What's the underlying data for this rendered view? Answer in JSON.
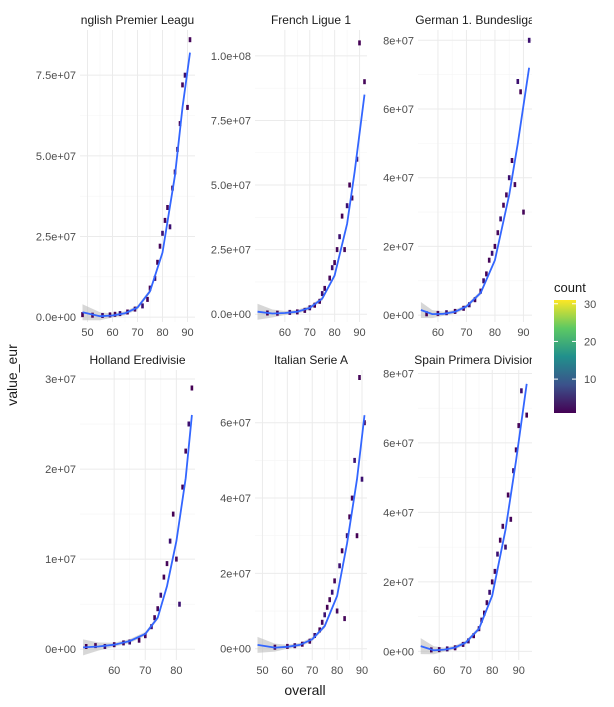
{
  "chart_data": {
    "type": "heatmap",
    "title": "",
    "xlabel": "overall",
    "ylabel": "value_eur",
    "legend": {
      "title": "count",
      "position": "right",
      "breaks": [
        10,
        20,
        30
      ],
      "range": [
        1,
        31
      ],
      "colors": [
        "#440154",
        "#3b528b",
        "#21908c",
        "#5dc863",
        "#fde725"
      ]
    },
    "smooth_color": "#3366ff",
    "ribbon_color": "#bdbdbd",
    "facets": [
      {
        "name": "English Premier League",
        "label_display": "nglish Premier Leagu",
        "xlim": [
          47,
          93
        ],
        "ylim": [
          -1500000,
          89000000
        ],
        "xticks": [
          50,
          60,
          70,
          80,
          90
        ],
        "yticks": [
          0,
          25000000,
          50000000,
          75000000
        ],
        "ytick_labels": [
          "0.0e+00",
          "2.5e+07",
          "5.0e+07",
          "7.5e+07"
        ],
        "smooth": [
          [
            48,
            1500000
          ],
          [
            55,
            300000
          ],
          [
            60,
            500000
          ],
          [
            65,
            1200000
          ],
          [
            70,
            3000000
          ],
          [
            75,
            8000000
          ],
          [
            80,
            20000000
          ],
          [
            85,
            44000000
          ],
          [
            88,
            65000000
          ],
          [
            91,
            82000000
          ]
        ],
        "cells": [
          [
            48,
            800000
          ],
          [
            52,
            600000
          ],
          [
            56,
            500000
          ],
          [
            59,
            700000
          ],
          [
            61,
            900000
          ],
          [
            63,
            1100000
          ],
          [
            66,
            1600000
          ],
          [
            69,
            2500000
          ],
          [
            72,
            3500000
          ],
          [
            74,
            5500000
          ],
          [
            75,
            9000000
          ],
          [
            77,
            12000000
          ],
          [
            78,
            17000000
          ],
          [
            79,
            22000000
          ],
          [
            80,
            26000000
          ],
          [
            81,
            30000000
          ],
          [
            82,
            34000000
          ],
          [
            83,
            28000000
          ],
          [
            84,
            40000000
          ],
          [
            85,
            45000000
          ],
          [
            86,
            52000000
          ],
          [
            87,
            60000000
          ],
          [
            88,
            72000000
          ],
          [
            89,
            75000000
          ],
          [
            90,
            65000000
          ],
          [
            91,
            86000000
          ]
        ]
      },
      {
        "name": "French Ligue 1",
        "label_display": "French Ligue 1",
        "xlim": [
          48,
          93
        ],
        "ylim": [
          -3000000,
          110000000
        ],
        "xticks": [
          60,
          70,
          80,
          90
        ],
        "yticks": [
          0,
          25000000,
          50000000,
          75000000,
          100000000
        ],
        "ytick_labels": [
          "0.0e+00",
          "2.5e+07",
          "5.0e+07",
          "7.5e+07",
          "1.0e+08"
        ],
        "smooth": [
          [
            49,
            1000000
          ],
          [
            55,
            300000
          ],
          [
            60,
            500000
          ],
          [
            65,
            1000000
          ],
          [
            70,
            2500000
          ],
          [
            75,
            6000000
          ],
          [
            80,
            15000000
          ],
          [
            85,
            35000000
          ],
          [
            88,
            55000000
          ],
          [
            92,
            85000000
          ]
        ],
        "cells": [
          [
            53,
            500000
          ],
          [
            57,
            400000
          ],
          [
            62,
            700000
          ],
          [
            65,
            900000
          ],
          [
            68,
            1500000
          ],
          [
            70,
            2500000
          ],
          [
            72,
            3500000
          ],
          [
            74,
            5000000
          ],
          [
            75,
            8000000
          ],
          [
            76,
            10000000
          ],
          [
            78,
            14000000
          ],
          [
            79,
            18000000
          ],
          [
            80,
            20000000
          ],
          [
            81,
            25000000
          ],
          [
            82,
            30000000
          ],
          [
            83,
            38000000
          ],
          [
            84,
            25000000
          ],
          [
            85,
            42000000
          ],
          [
            86,
            50000000
          ],
          [
            87,
            45000000
          ],
          [
            89,
            60000000
          ],
          [
            90,
            105000000
          ],
          [
            92,
            90000000
          ]
        ]
      },
      {
        "name": "German 1. Bundesliga",
        "label_display": "German 1. Bundesliga",
        "xlim": [
          53,
          93
        ],
        "ylim": [
          -2000000,
          83000000
        ],
        "xticks": [
          60,
          70,
          80,
          90
        ],
        "yticks": [
          0,
          20000000,
          40000000,
          60000000,
          80000000
        ],
        "ytick_labels": [
          "0e+00",
          "2e+07",
          "4e+07",
          "6e+07",
          "8e+07"
        ],
        "smooth": [
          [
            54,
            1500000
          ],
          [
            58,
            300000
          ],
          [
            62,
            400000
          ],
          [
            66,
            1000000
          ],
          [
            70,
            2500000
          ],
          [
            75,
            6500000
          ],
          [
            80,
            16000000
          ],
          [
            85,
            35000000
          ],
          [
            88,
            50000000
          ],
          [
            92,
            72000000
          ]
        ],
        "cells": [
          [
            56,
            400000
          ],
          [
            60,
            500000
          ],
          [
            63,
            700000
          ],
          [
            66,
            1100000
          ],
          [
            69,
            2000000
          ],
          [
            71,
            3000000
          ],
          [
            73,
            4500000
          ],
          [
            75,
            7000000
          ],
          [
            76,
            10000000
          ],
          [
            77,
            12000000
          ],
          [
            78,
            16000000
          ],
          [
            79,
            18000000
          ],
          [
            80,
            20000000
          ],
          [
            81,
            24000000
          ],
          [
            82,
            28000000
          ],
          [
            83,
            32000000
          ],
          [
            84,
            35000000
          ],
          [
            85,
            40000000
          ],
          [
            86,
            45000000
          ],
          [
            87,
            38000000
          ],
          [
            88,
            68000000
          ],
          [
            89,
            65000000
          ],
          [
            90,
            30000000
          ],
          [
            92,
            80000000
          ]
        ]
      },
      {
        "name": "Holland Eredivisie",
        "label_display": "Holland Eredivisie",
        "xlim": [
          49,
          86
        ],
        "ylim": [
          -1200000,
          31000000
        ],
        "xticks": [
          60,
          70,
          80
        ],
        "yticks": [
          0,
          10000000,
          20000000,
          30000000
        ],
        "ytick_labels": [
          "0e+00",
          "1e+07",
          "2e+07",
          "3e+07"
        ],
        "smooth": [
          [
            50,
            200000
          ],
          [
            55,
            300000
          ],
          [
            60,
            500000
          ],
          [
            65,
            900000
          ],
          [
            70,
            1700000
          ],
          [
            74,
            3500000
          ],
          [
            77,
            7000000
          ],
          [
            80,
            12000000
          ],
          [
            83,
            19000000
          ],
          [
            85,
            26000000
          ]
        ],
        "cells": [
          [
            51,
            300000
          ],
          [
            54,
            400000
          ],
          [
            57,
            300000
          ],
          [
            60,
            500000
          ],
          [
            63,
            700000
          ],
          [
            65,
            800000
          ],
          [
            68,
            1000000
          ],
          [
            70,
            1500000
          ],
          [
            72,
            2500000
          ],
          [
            73,
            3500000
          ],
          [
            74,
            4500000
          ],
          [
            75,
            6000000
          ],
          [
            76,
            8000000
          ],
          [
            77,
            9500000
          ],
          [
            78,
            12000000
          ],
          [
            79,
            15000000
          ],
          [
            80,
            10000000
          ],
          [
            81,
            5000000
          ],
          [
            82,
            18000000
          ],
          [
            83,
            22000000
          ],
          [
            84,
            25000000
          ],
          [
            85,
            29000000
          ]
        ]
      },
      {
        "name": "Italian Serie A",
        "label_display": "Italian Serie A",
        "xlim": [
          47,
          92
        ],
        "ylim": [
          -3000000,
          74000000
        ],
        "xticks": [
          50,
          60,
          70,
          80,
          90
        ],
        "yticks": [
          0,
          20000000,
          40000000,
          60000000
        ],
        "ytick_labels": [
          "0e+00",
          "2e+07",
          "4e+07",
          "6e+07"
        ],
        "smooth": [
          [
            48,
            1000000
          ],
          [
            55,
            300000
          ],
          [
            60,
            500000
          ],
          [
            65,
            1000000
          ],
          [
            70,
            2500000
          ],
          [
            75,
            6000000
          ],
          [
            80,
            14000000
          ],
          [
            84,
            28000000
          ],
          [
            88,
            45000000
          ],
          [
            91,
            62000000
          ]
        ],
        "cells": [
          [
            55,
            400000
          ],
          [
            60,
            600000
          ],
          [
            63,
            800000
          ],
          [
            66,
            1200000
          ],
          [
            69,
            2000000
          ],
          [
            71,
            3500000
          ],
          [
            73,
            5000000
          ],
          [
            74,
            7000000
          ],
          [
            75,
            9000000
          ],
          [
            76,
            11000000
          ],
          [
            77,
            13000000
          ],
          [
            78,
            15000000
          ],
          [
            79,
            18000000
          ],
          [
            80,
            10000000
          ],
          [
            81,
            22000000
          ],
          [
            82,
            26000000
          ],
          [
            83,
            8000000
          ],
          [
            84,
            30000000
          ],
          [
            85,
            35000000
          ],
          [
            86,
            40000000
          ],
          [
            87,
            50000000
          ],
          [
            88,
            30000000
          ],
          [
            89,
            72000000
          ],
          [
            90,
            45000000
          ],
          [
            91,
            60000000
          ]
        ]
      },
      {
        "name": "Spain Primera Division",
        "label_display": "Spain Primera Division",
        "xlim": [
          52,
          95
        ],
        "ylim": [
          -2500000,
          81000000
        ],
        "xticks": [
          60,
          70,
          80,
          90
        ],
        "yticks": [
          0,
          20000000,
          40000000,
          60000000,
          80000000
        ],
        "ytick_labels": [
          "0e+00",
          "2e+07",
          "4e+07",
          "6e+07",
          "8e+07"
        ],
        "smooth": [
          [
            53,
            1500000
          ],
          [
            58,
            300000
          ],
          [
            62,
            500000
          ],
          [
            66,
            1100000
          ],
          [
            70,
            2500000
          ],
          [
            75,
            6500000
          ],
          [
            80,
            16000000
          ],
          [
            85,
            35000000
          ],
          [
            89,
            55000000
          ],
          [
            93,
            77000000
          ]
        ],
        "cells": [
          [
            57,
            400000
          ],
          [
            60,
            500000
          ],
          [
            63,
            700000
          ],
          [
            66,
            1000000
          ],
          [
            69,
            2000000
          ],
          [
            71,
            3000000
          ],
          [
            73,
            4500000
          ],
          [
            75,
            6500000
          ],
          [
            76,
            9000000
          ],
          [
            77,
            11000000
          ],
          [
            78,
            14000000
          ],
          [
            79,
            17000000
          ],
          [
            80,
            20000000
          ],
          [
            81,
            23000000
          ],
          [
            82,
            28000000
          ],
          [
            83,
            32000000
          ],
          [
            84,
            36000000
          ],
          [
            85,
            30000000
          ],
          [
            86,
            45000000
          ],
          [
            87,
            38000000
          ],
          [
            88,
            52000000
          ],
          [
            89,
            58000000
          ],
          [
            90,
            65000000
          ],
          [
            91,
            75000000
          ],
          [
            93,
            68000000
          ]
        ]
      }
    ]
  }
}
